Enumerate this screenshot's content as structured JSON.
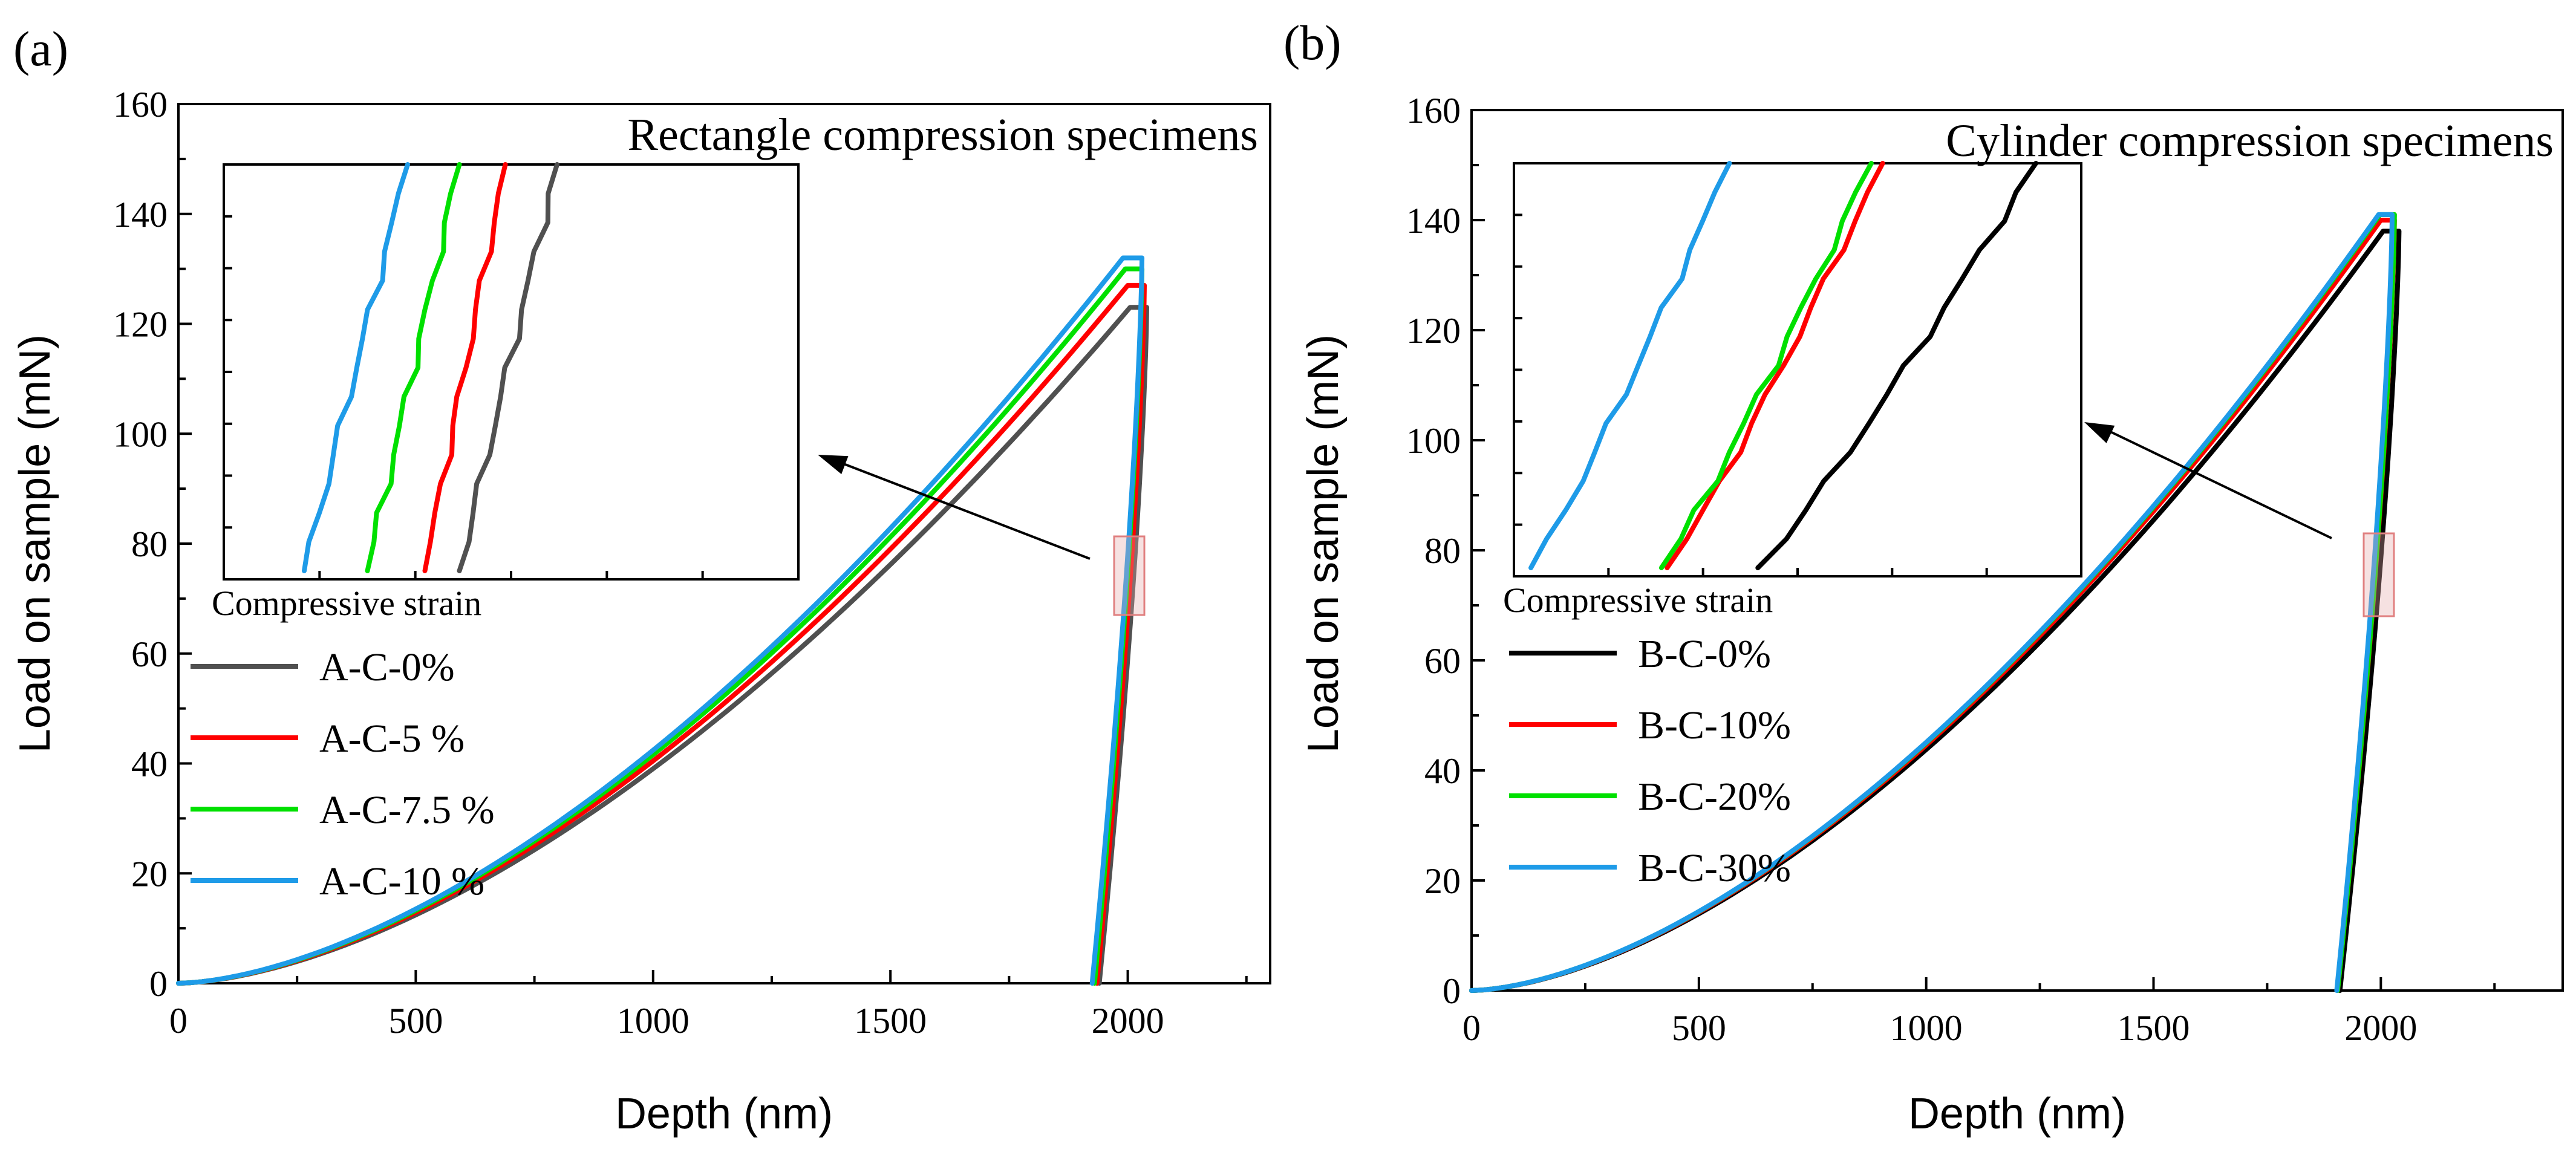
{
  "chart_data": [
    {
      "panel": "(a)",
      "type": "line",
      "title": "Rectangle compression specimens",
      "xlabel": "Depth (nm)",
      "ylabel": "Load on sample (mN)",
      "xlim": [
        0,
        2300
      ],
      "ylim": [
        0,
        160
      ],
      "xticks": [
        0,
        500,
        1000,
        1500,
        2000
      ],
      "yticks": [
        0,
        20,
        40,
        60,
        80,
        100,
        120,
        140,
        160
      ],
      "legend_position": "lower-left",
      "inset_label": "Compressive strain",
      "series": [
        {
          "name": "A-C-0%",
          "color": "#505050",
          "peak_depth": 2005,
          "peak_load": 123,
          "hold_end_depth": 2040,
          "unload_end_depth": 1940
        },
        {
          "name": "A-C-5 %",
          "color": "#ff0000",
          "peak_depth": 2000,
          "peak_load": 127,
          "hold_end_depth": 2035,
          "unload_end_depth": 1935
        },
        {
          "name": "A-C-7.5 %",
          "color": "#00e000",
          "peak_depth": 1995,
          "peak_load": 130,
          "hold_end_depth": 2030,
          "unload_end_depth": 1930
        },
        {
          "name": "A-C-10 %",
          "color": "#1e9be8",
          "peak_depth": 1990,
          "peak_load": 132,
          "hold_end_depth": 2030,
          "unload_end_depth": 1925
        }
      ]
    },
    {
      "panel": "(b)",
      "type": "line",
      "title": "Cylinder compression specimens",
      "xlabel": "Depth (nm)",
      "ylabel": "Load on sample (mN)",
      "xlim": [
        0,
        2400
      ],
      "ylim": [
        0,
        160
      ],
      "xticks": [
        0,
        500,
        1000,
        1500,
        2000
      ],
      "yticks": [
        0,
        20,
        40,
        60,
        80,
        100,
        120,
        140,
        160
      ],
      "legend_position": "lower-left",
      "inset_label": "Compressive strain",
      "series": [
        {
          "name": "B-C-0%",
          "color": "#000000",
          "peak_depth": 2005,
          "peak_load": 138,
          "hold_end_depth": 2040,
          "unload_end_depth": 1910
        },
        {
          "name": "B-C-10%",
          "color": "#ff0000",
          "peak_depth": 2000,
          "peak_load": 140,
          "hold_end_depth": 2030,
          "unload_end_depth": 1905
        },
        {
          "name": "B-C-20%",
          "color": "#00e000",
          "peak_depth": 1998,
          "peak_load": 141,
          "hold_end_depth": 2030,
          "unload_end_depth": 1905
        },
        {
          "name": "B-C-30%",
          "color": "#1e9be8",
          "peak_depth": 1995,
          "peak_load": 141,
          "hold_end_depth": 2025,
          "unload_end_depth": 1903
        }
      ]
    }
  ]
}
